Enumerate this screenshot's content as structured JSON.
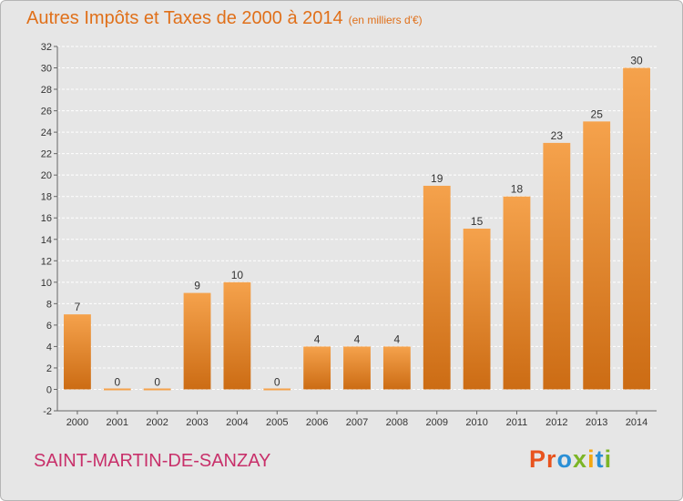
{
  "header": {
    "title": "Autres Impôts et Taxes de 2000 à 2014",
    "unit": "(en milliers d'€)"
  },
  "footer": {
    "place": "SAINT-MARTIN-DE-SANZAY",
    "brand": "Proxiti"
  },
  "colors": {
    "bar_light": "#f5a24c",
    "bar_dark": "#cc6c14",
    "grid": "#ffffff",
    "title": "#e0701a",
    "place": "#c8306a",
    "brand": [
      "#e8531e",
      "#e8531e",
      "#2a8fd6",
      "#7cb526",
      "#f3a712",
      "#2a8fd6",
      "#7cb526"
    ]
  },
  "chart_data": {
    "type": "bar",
    "title": "Autres Impôts et Taxes de 2000 à 2014",
    "subtitle": "(en milliers d'€)",
    "categories": [
      "2000",
      "2001",
      "2002",
      "2003",
      "2004",
      "2005",
      "2006",
      "2007",
      "2008",
      "2009",
      "2010",
      "2011",
      "2012",
      "2013",
      "2014"
    ],
    "values": [
      7,
      0,
      0,
      9,
      10,
      0,
      4,
      4,
      4,
      19,
      15,
      18,
      23,
      25,
      30
    ],
    "ylim": [
      -2,
      32
    ],
    "yticks": [
      -2,
      0,
      2,
      4,
      6,
      8,
      10,
      12,
      14,
      16,
      18,
      20,
      22,
      24,
      26,
      28,
      30,
      32
    ],
    "grid": true,
    "legend": "none"
  }
}
